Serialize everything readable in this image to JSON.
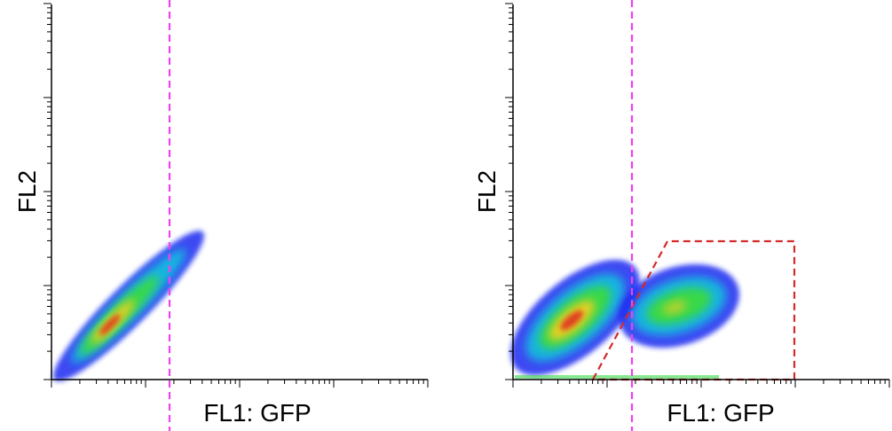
{
  "chart_data": [
    {
      "type": "density",
      "xlabel": "FL1: GFP",
      "ylabel": "FL2"
    },
    {
      "type": "density",
      "xlabel": "FL1: GFP",
      "ylabel": "FL2"
    }
  ]
}
